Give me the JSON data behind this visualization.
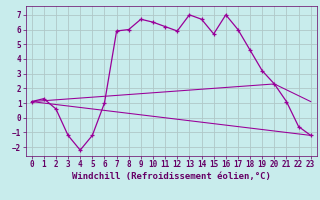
{
  "xlabel": "Windchill (Refroidissement éolien,°C)",
  "background_color": "#c8ecec",
  "line_color": "#990099",
  "label_color": "#660066",
  "xlim": [
    -0.5,
    23.5
  ],
  "ylim": [
    -2.6,
    7.6
  ],
  "yticks": [
    -2,
    -1,
    0,
    1,
    2,
    3,
    4,
    5,
    6,
    7
  ],
  "xticks": [
    0,
    1,
    2,
    3,
    4,
    5,
    6,
    7,
    8,
    9,
    10,
    11,
    12,
    13,
    14,
    15,
    16,
    17,
    18,
    19,
    20,
    21,
    22,
    23
  ],
  "line1_x": [
    0,
    1,
    2,
    3,
    4,
    5,
    6,
    7,
    8,
    9,
    10,
    11,
    12,
    13,
    14,
    15,
    16,
    17,
    18,
    19,
    20,
    21,
    22,
    23
  ],
  "line1_y": [
    1.1,
    1.3,
    0.6,
    -1.2,
    -2.2,
    -1.2,
    1.0,
    5.9,
    6.0,
    6.7,
    6.5,
    6.2,
    5.9,
    7.0,
    6.7,
    5.7,
    7.0,
    6.0,
    4.6,
    3.2,
    2.3,
    1.1,
    -0.6,
    -1.2
  ],
  "line2_x": [
    0,
    23
  ],
  "line2_y": [
    1.1,
    -1.2
  ],
  "line3_x": [
    0,
    20,
    23
  ],
  "line3_y": [
    1.1,
    2.3,
    1.1
  ],
  "grid_color": "#b0c8c8",
  "tick_fontsize": 5.5,
  "xlabel_fontsize": 6.5,
  "linewidth": 0.9,
  "markersize": 3.5
}
